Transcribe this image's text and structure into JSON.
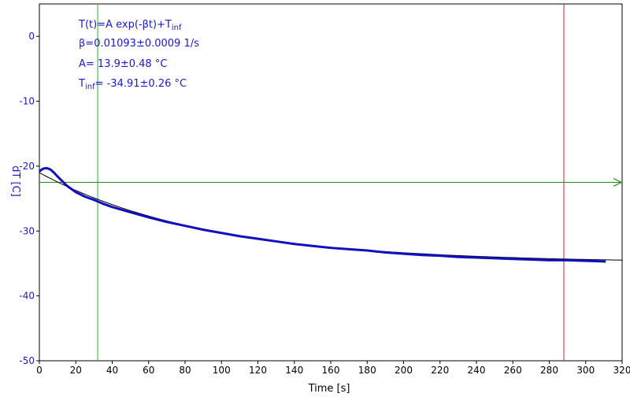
{
  "chart_data": {
    "type": "line",
    "xlabel": "Time [s]",
    "ylabel": "dT [C]",
    "xlim": [
      0,
      320
    ],
    "ylim": [
      -50,
      5
    ],
    "xticks": [
      0,
      20,
      40,
      60,
      80,
      100,
      120,
      140,
      160,
      180,
      200,
      220,
      240,
      260,
      280,
      300,
      320
    ],
    "yticks": [
      0,
      -10,
      -20,
      -30,
      -40,
      -50
    ],
    "annotations": {
      "model": {
        "main": "T(t)=A exp(-βt)+T",
        "sub": "inf"
      },
      "beta": "β=0.01093±0.0009 1/s",
      "amplitude": "A= 13.9±0.48 °C",
      "tinf": {
        "prefix": "T",
        "sub": "inf",
        "rest": "= -34.91±0.26 °C"
      }
    },
    "fit": {
      "A": 13.9,
      "beta": 0.01093,
      "t_inf": -34.91,
      "x_range": [
        0,
        320
      ]
    },
    "series": [
      {
        "color": "#1010c0",
        "x": [
          0,
          2,
          4,
          6,
          8,
          10,
          15,
          20,
          25,
          30,
          35,
          40,
          50,
          60,
          70,
          80,
          90,
          100,
          110,
          120,
          130,
          140,
          150,
          160,
          170,
          180,
          190,
          200,
          210,
          220,
          230,
          240,
          250,
          260,
          270,
          280,
          290,
          300,
          311
        ],
        "y": [
          -20.8,
          -20.4,
          -20.3,
          -20.5,
          -21.0,
          -21.6,
          -23.0,
          -24.0,
          -24.7,
          -25.2,
          -25.8,
          -26.3,
          -27.1,
          -27.9,
          -28.6,
          -29.2,
          -29.8,
          -30.3,
          -30.8,
          -31.2,
          -31.6,
          -32.0,
          -32.3,
          -32.6,
          -32.8,
          -33.0,
          -33.3,
          -33.5,
          -33.7,
          -33.8,
          -34.0,
          -34.1,
          -34.2,
          -34.3,
          -34.4,
          -34.5,
          -34.5,
          -34.6,
          -34.7
        ]
      }
    ],
    "markers": {
      "vertical_green_x": 32,
      "vertical_red_x": 288,
      "horizontal_green_y": -22.5
    },
    "colors": {
      "data": "#1010c0",
      "fit": "#000000",
      "green": "#2ab52a",
      "horizontal": "#1a8c1a",
      "red": "#d02020",
      "axis_text": "#1a1ac8"
    }
  }
}
